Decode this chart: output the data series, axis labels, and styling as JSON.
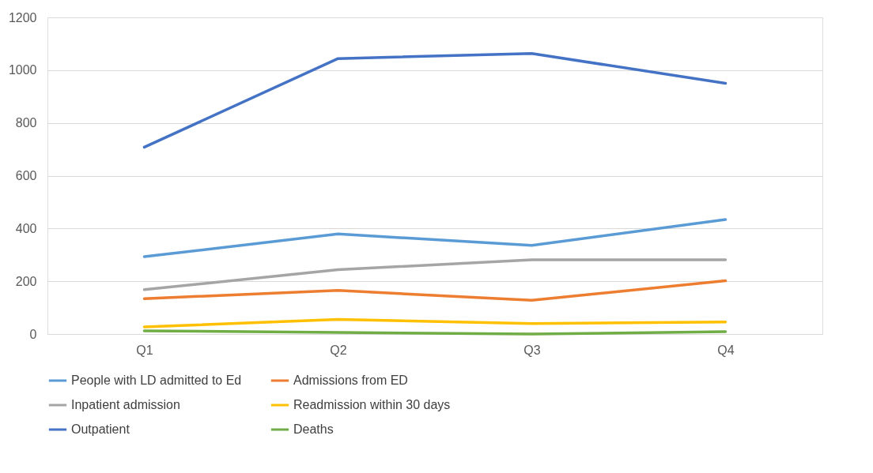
{
  "chart_data": {
    "type": "line",
    "categories": [
      "Q1",
      "Q2",
      "Q3",
      "Q4"
    ],
    "series": [
      {
        "name": "People with LD admitted to Ed",
        "color": "#5b9bd5",
        "values": [
          293,
          379,
          336,
          434
        ]
      },
      {
        "name": "Admissions from ED",
        "color": "#ed7d31",
        "values": [
          134,
          165,
          128,
          202
        ]
      },
      {
        "name": "Inpatient admission",
        "color": "#a5a5a5",
        "values": [
          168,
          244,
          281,
          281
        ]
      },
      {
        "name": "Readmission within 30 days",
        "color": "#ffc000",
        "values": [
          27,
          55,
          40,
          46
        ]
      },
      {
        "name": "Outpatient",
        "color": "#4472c4",
        "values": [
          708,
          1044,
          1063,
          950
        ]
      },
      {
        "name": "Deaths",
        "color": "#70ad47",
        "values": [
          12,
          6,
          0,
          9
        ]
      }
    ],
    "ylim": [
      0,
      1200
    ],
    "yticks": [
      0,
      200,
      400,
      600,
      800,
      1000,
      1200
    ],
    "grid": "y",
    "legend": "bottom",
    "line_style": "solid"
  }
}
